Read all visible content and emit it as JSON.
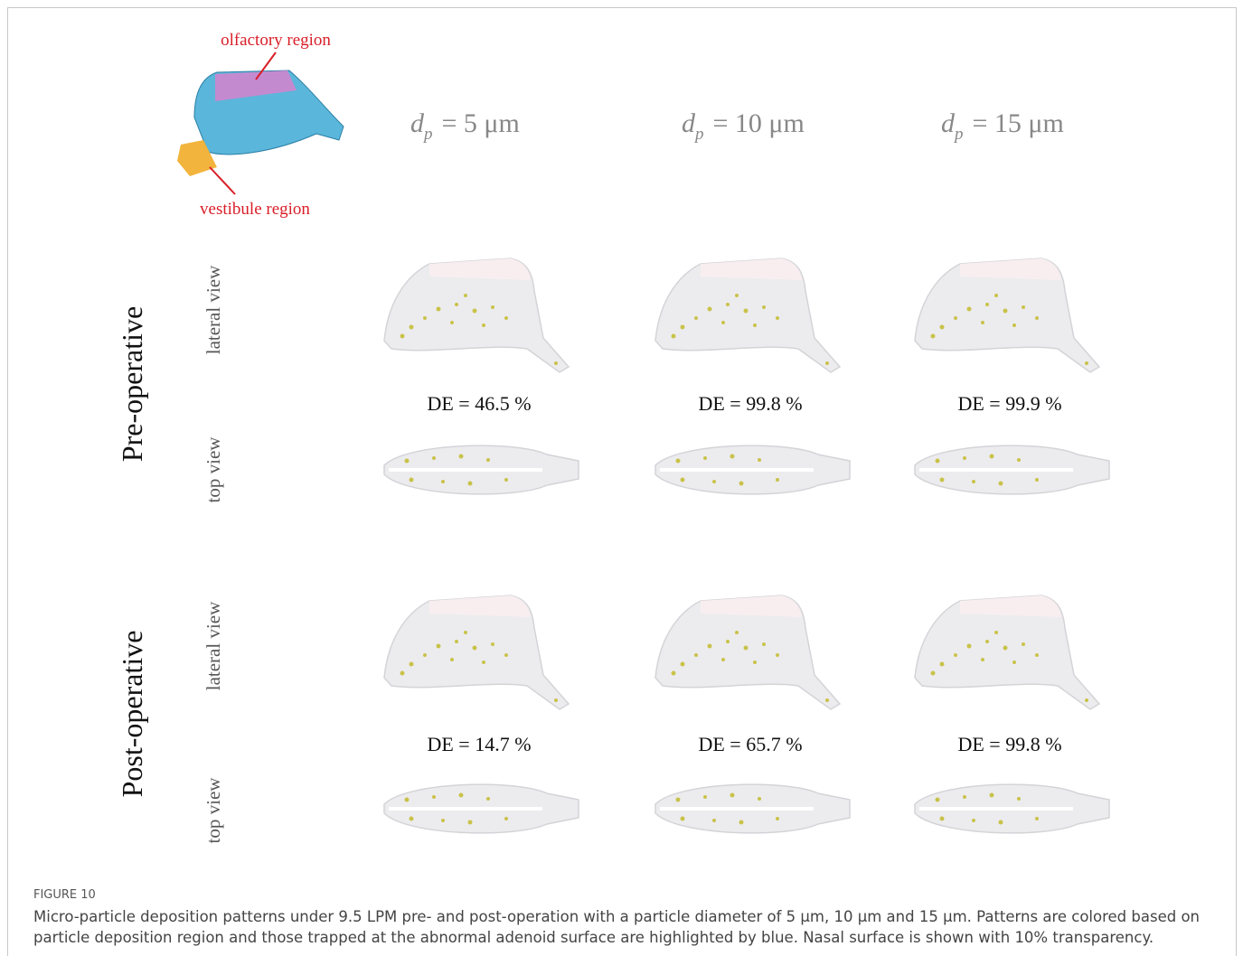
{
  "figure": {
    "annotations": {
      "olfactory": "olfactory region",
      "vestibule": "vestibule region"
    },
    "column_headers": [
      {
        "symbol": "d",
        "subscript": "p",
        "text": "= 5 μm"
      },
      {
        "symbol": "d",
        "subscript": "p",
        "text": "= 10 μm"
      },
      {
        "symbol": "d",
        "subscript": "p",
        "text": "= 15 μm"
      }
    ],
    "rows": [
      {
        "label": "Pre-operative",
        "lateral": "lateral view",
        "top": "top view",
        "de": [
          "DE = 46.5 %",
          "DE = 99.8 %",
          "DE = 99.9 %"
        ]
      },
      {
        "label": "Post-operative",
        "lateral": "lateral view",
        "top": "top view",
        "de": [
          "DE = 14.7 %",
          "DE = 65.7 %",
          "DE = 99.8 %"
        ]
      }
    ]
  },
  "caption": {
    "label": "FIGURE 10",
    "text": "Micro-particle deposition patterns under 9.5 LPM pre- and post-operation with a particle diameter of 5 μm, 10 μm and 15 μm. Patterns are colored based on particle deposition region and those trapped at the abnormal adenoid surface are highlighted by blue. Nasal surface is shown with 10% transparency."
  }
}
